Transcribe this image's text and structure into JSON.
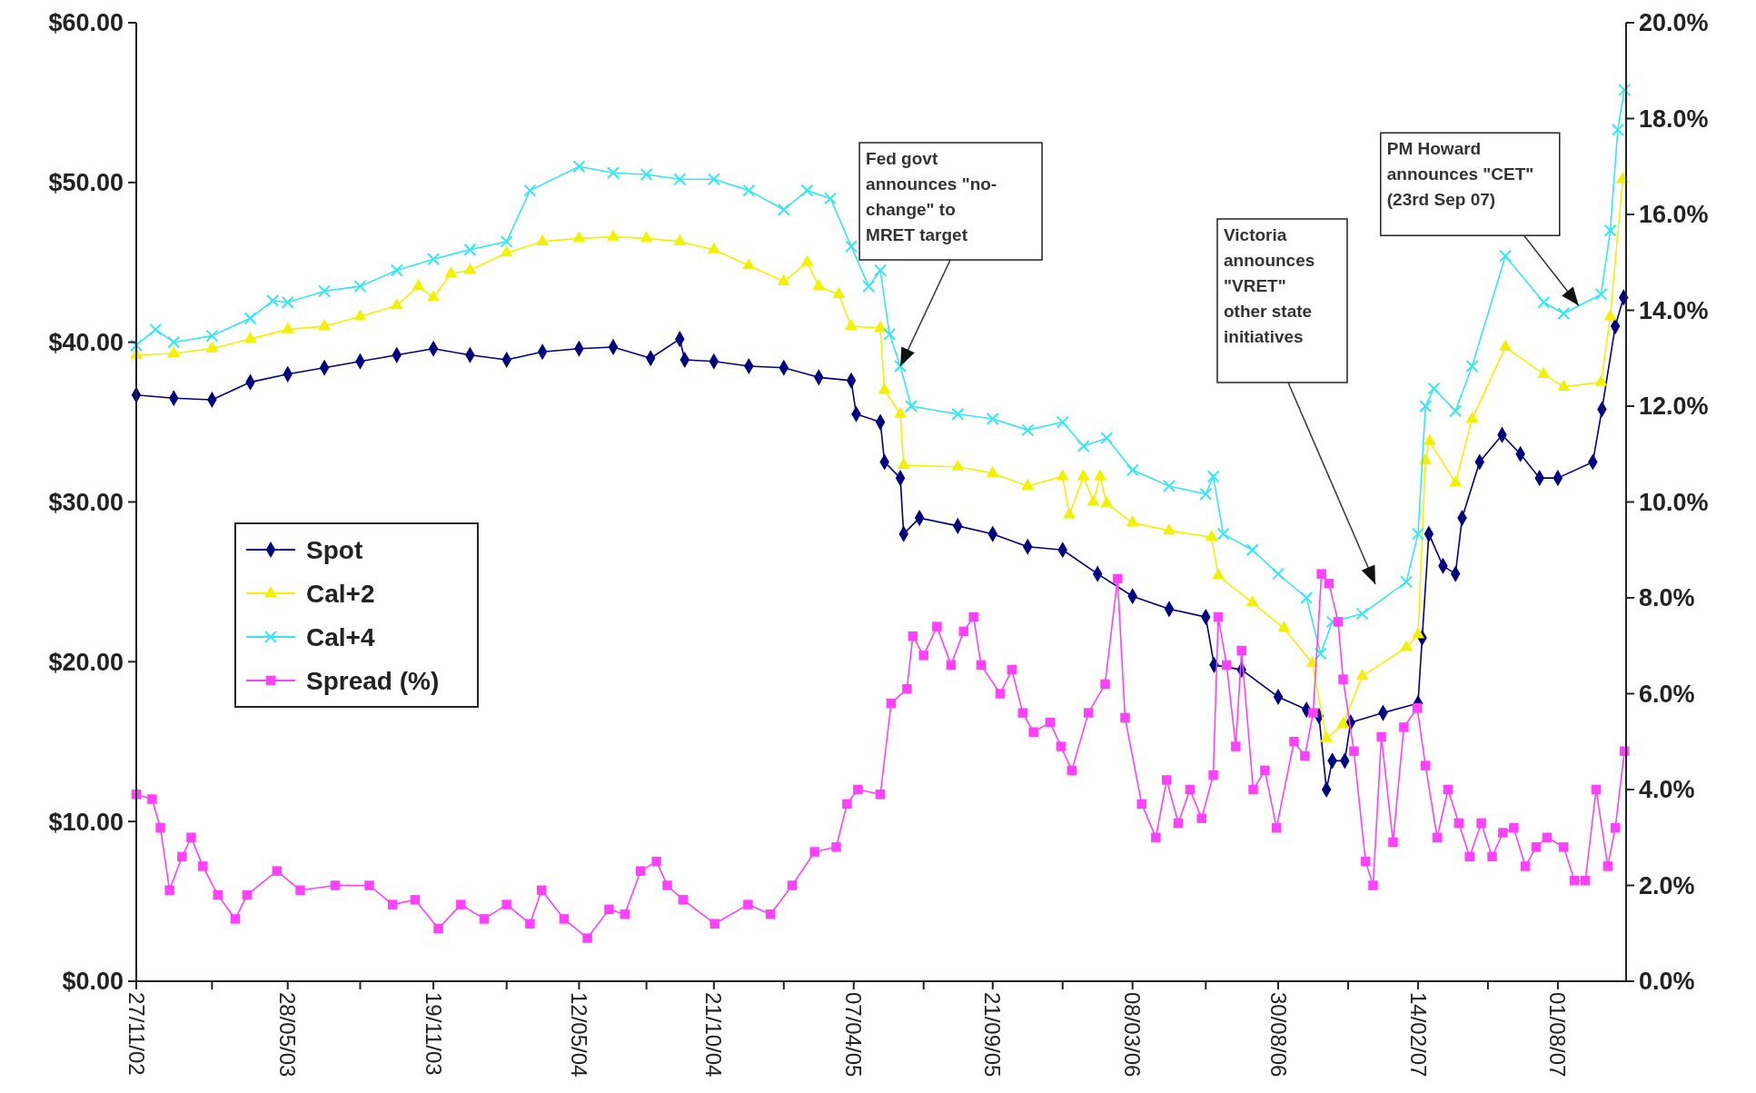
{
  "chart_data": {
    "type": "line",
    "ylim": [
      0,
      60
    ],
    "yticks": [
      {
        "value": 0,
        "label": "$0.00"
      },
      {
        "value": 10,
        "label": "$10.00"
      },
      {
        "value": 20,
        "label": "$20.00"
      },
      {
        "value": 30,
        "label": "$30.00"
      },
      {
        "value": 40,
        "label": "$40.00"
      },
      {
        "value": 50,
        "label": "$50.00"
      },
      {
        "value": 60,
        "label": "$60.00"
      }
    ],
    "y2lim": [
      0,
      20
    ],
    "y2ticks": [
      {
        "value": 0,
        "label": "0.0%"
      },
      {
        "value": 2,
        "label": "2.0%"
      },
      {
        "value": 4,
        "label": "4.0%"
      },
      {
        "value": 6,
        "label": "6.0%"
      },
      {
        "value": 8,
        "label": "8.0%"
      },
      {
        "value": 10,
        "label": "10.0%"
      },
      {
        "value": 12,
        "label": "12.0%"
      },
      {
        "value": 14,
        "label": "14.0%"
      },
      {
        "value": 16,
        "label": "16.0%"
      },
      {
        "value": 18,
        "label": "18.0%"
      },
      {
        "value": 20,
        "label": "20.0%"
      }
    ],
    "xlim": [
      "2002-11-27",
      "2007-10-22"
    ],
    "xticks": [
      {
        "value": "2002-11-27",
        "label": "27/11/02"
      },
      {
        "value": "2003-02-26",
        "label": null
      },
      {
        "value": "2003-05-28",
        "label": "28/05/03"
      },
      {
        "value": "2003-08-23",
        "label": null
      },
      {
        "value": "2003-11-19",
        "label": "19/11/03"
      },
      {
        "value": "2004-02-15",
        "label": null
      },
      {
        "value": "2004-05-12",
        "label": "12/05/04"
      },
      {
        "value": "2004-08-01",
        "label": null
      },
      {
        "value": "2004-10-21",
        "label": "21/10/04"
      },
      {
        "value": "2005-01-13",
        "label": null
      },
      {
        "value": "2005-04-07",
        "label": "07/04/05"
      },
      {
        "value": "2005-06-30",
        "label": null
      },
      {
        "value": "2005-09-21",
        "label": "21/09/05"
      },
      {
        "value": "2005-12-14",
        "label": null
      },
      {
        "value": "2006-03-08",
        "label": "08/03/06"
      },
      {
        "value": "2006-06-04",
        "label": null
      },
      {
        "value": "2006-08-30",
        "label": "30/08/06"
      },
      {
        "value": "2006-11-22",
        "label": null
      },
      {
        "value": "2007-02-14",
        "label": "14/02/07"
      },
      {
        "value": "2007-05-09",
        "label": null
      },
      {
        "value": "2007-08-01",
        "label": "01/08/07"
      }
    ],
    "grid": false,
    "legend": "left",
    "line_style": "solid",
    "series": [
      {
        "name": "Spot",
        "color": "#000080",
        "marker": "diamond",
        "x": [
          "2002-11-27",
          "2003-01-11",
          "2003-02-26",
          "2003-04-13",
          "2003-05-28",
          "2003-07-11",
          "2003-08-23",
          "2003-10-06",
          "2003-11-19",
          "2004-01-02",
          "2004-02-15",
          "2004-03-29",
          "2004-05-12",
          "2004-06-22",
          "2004-08-06",
          "2004-09-10",
          "2004-09-16",
          "2004-10-21",
          "2004-12-02",
          "2005-01-13",
          "2005-02-24",
          "2005-04-04",
          "2005-04-10",
          "2005-05-09",
          "2005-05-14",
          "2005-06-02",
          "2005-06-06",
          "2005-06-25",
          "2005-08-10",
          "2005-09-21",
          "2005-11-02",
          "2005-12-14",
          "2006-01-25",
          "2006-03-08",
          "2006-04-21",
          "2006-06-04",
          "2006-06-14",
          "2006-07-17",
          "2006-08-30",
          "2006-10-03",
          "2006-10-18",
          "2006-10-27",
          "2006-11-03",
          "2006-11-18",
          "2006-11-25",
          "2007-01-03",
          "2007-02-14",
          "2007-02-19",
          "2007-02-27",
          "2007-03-16",
          "2007-03-31",
          "2007-04-08",
          "2007-04-29",
          "2007-05-26",
          "2007-06-17",
          "2007-07-10",
          "2007-08-01",
          "2007-09-12",
          "2007-09-23",
          "2007-10-09",
          "2007-10-19"
        ],
        "values": [
          36.7,
          36.5,
          36.4,
          37.5,
          38.0,
          38.4,
          38.8,
          39.2,
          39.6,
          39.2,
          38.9,
          39.4,
          39.6,
          39.7,
          39.0,
          40.2,
          38.9,
          38.8,
          38.5,
          38.4,
          37.8,
          37.6,
          35.5,
          35.0,
          32.5,
          31.5,
          28.0,
          29.0,
          28.5,
          28.0,
          27.2,
          27.0,
          25.5,
          24.1,
          23.3,
          22.8,
          19.8,
          19.5,
          17.8,
          17.0,
          16.6,
          12.0,
          13.8,
          13.8,
          16.2,
          16.8,
          17.4,
          21.5,
          28.0,
          26.0,
          25.5,
          29.0,
          32.5,
          34.2,
          33.0,
          31.5,
          31.5,
          32.5,
          35.8,
          41.0,
          42.8
        ]
      },
      {
        "name": "Cal+2",
        "color": "#f2f200",
        "marker": "triangle",
        "x": [
          "2002-11-27",
          "2003-01-11",
          "2003-02-26",
          "2003-04-13",
          "2003-05-28",
          "2003-07-11",
          "2003-08-23",
          "2003-10-06",
          "2003-11-01",
          "2003-11-19",
          "2003-12-10",
          "2004-01-02",
          "2004-02-15",
          "2004-03-29",
          "2004-05-12",
          "2004-06-22",
          "2004-08-01",
          "2004-09-10",
          "2004-10-21",
          "2004-12-02",
          "2005-01-13",
          "2005-02-10",
          "2005-02-24",
          "2005-03-20",
          "2005-04-04",
          "2005-05-09",
          "2005-05-14",
          "2005-06-02",
          "2005-06-06",
          "2005-08-10",
          "2005-09-21",
          "2005-11-02",
          "2005-12-14",
          "2005-12-22",
          "2006-01-08",
          "2006-01-20",
          "2006-01-28",
          "2006-02-05",
          "2006-03-08",
          "2006-04-21",
          "2006-06-11",
          "2006-06-19",
          "2006-07-30",
          "2006-09-06",
          "2006-10-10",
          "2006-10-27",
          "2006-11-16",
          "2006-12-09",
          "2007-01-31",
          "2007-02-14",
          "2007-02-23",
          "2007-02-28",
          "2007-03-31",
          "2007-04-20",
          "2007-05-30",
          "2007-07-15",
          "2007-08-08",
          "2007-09-22",
          "2007-10-03",
          "2007-10-18"
        ],
        "values": [
          39.2,
          39.3,
          39.6,
          40.2,
          40.8,
          41.0,
          41.6,
          42.3,
          43.5,
          42.8,
          44.3,
          44.5,
          45.6,
          46.3,
          46.5,
          46.6,
          46.5,
          46.3,
          45.8,
          44.8,
          43.8,
          45.0,
          43.5,
          43.0,
          41.0,
          40.9,
          37.0,
          35.5,
          32.3,
          32.2,
          31.8,
          31.0,
          31.6,
          29.2,
          31.6,
          30.0,
          31.6,
          29.9,
          28.7,
          28.2,
          27.8,
          25.4,
          23.7,
          22.1,
          19.9,
          15.2,
          16.1,
          19.1,
          20.9,
          21.7,
          32.6,
          33.8,
          31.2,
          35.2,
          39.7,
          38.0,
          37.2,
          37.5,
          41.6,
          50.2
        ]
      },
      {
        "name": "Cal+4",
        "color": "#33e8f0",
        "marker": "cross",
        "x": [
          "2002-11-27",
          "2002-12-20",
          "2003-01-11",
          "2003-02-26",
          "2003-04-13",
          "2003-05-10",
          "2003-05-28",
          "2003-07-11",
          "2003-08-23",
          "2003-10-06",
          "2003-11-19",
          "2004-01-02",
          "2004-02-15",
          "2004-03-14",
          "2004-05-12",
          "2004-06-22",
          "2004-08-01",
          "2004-09-10",
          "2004-10-21",
          "2004-12-02",
          "2005-01-13",
          "2005-02-10",
          "2005-03-10",
          "2005-04-04",
          "2005-04-25",
          "2005-05-09",
          "2005-05-20",
          "2005-06-02",
          "2005-06-15",
          "2005-08-10",
          "2005-09-21",
          "2005-11-02",
          "2005-12-14",
          "2006-01-08",
          "2006-02-05",
          "2006-03-08",
          "2006-04-21",
          "2006-06-04",
          "2006-06-13",
          "2006-06-25",
          "2006-07-30",
          "2006-08-30",
          "2006-10-03",
          "2006-10-20",
          "2006-11-03",
          "2006-12-09",
          "2007-01-31",
          "2007-02-14",
          "2007-02-23",
          "2007-03-05",
          "2007-03-31",
          "2007-04-20",
          "2007-05-30",
          "2007-07-15",
          "2007-08-08",
          "2007-09-22",
          "2007-10-03",
          "2007-10-12",
          "2007-10-20"
        ],
        "values": [
          39.8,
          40.8,
          40.0,
          40.4,
          41.5,
          42.6,
          42.5,
          43.2,
          43.5,
          44.5,
          45.2,
          45.8,
          46.3,
          49.5,
          51.0,
          50.6,
          50.5,
          50.2,
          50.2,
          49.5,
          48.3,
          49.5,
          49.0,
          46.0,
          43.5,
          44.5,
          40.5,
          38.5,
          36.0,
          35.5,
          35.2,
          34.5,
          35.0,
          33.5,
          34.0,
          32.0,
          31.0,
          30.5,
          31.6,
          28.0,
          27.0,
          25.5,
          24.0,
          20.5,
          22.5,
          23.0,
          25.0,
          28.0,
          36.0,
          37.1,
          35.7,
          38.5,
          45.4,
          42.5,
          41.8,
          43.0,
          47.0,
          53.3,
          55.8
        ]
      },
      {
        "name": "Spread (%)",
        "color": "#ff40ff",
        "marker": "square",
        "axis": "y2",
        "x": [
          "2002-11-27",
          "2002-12-16",
          "2002-12-26",
          "2003-01-06",
          "2003-01-21",
          "2003-02-01",
          "2003-02-15",
          "2003-03-05",
          "2003-03-26",
          "2003-04-09",
          "2003-05-15",
          "2003-06-12",
          "2003-07-24",
          "2003-09-03",
          "2003-10-01",
          "2003-10-28",
          "2003-11-25",
          "2003-12-22",
          "2004-01-19",
          "2004-02-15",
          "2004-03-14",
          "2004-03-28",
          "2004-04-24",
          "2004-05-22",
          "2004-06-17",
          "2004-07-06",
          "2004-07-25",
          "2004-08-13",
          "2004-08-26",
          "2004-09-14",
          "2004-10-22",
          "2004-12-01",
          "2004-12-28",
          "2005-01-23",
          "2005-02-19",
          "2005-03-17",
          "2005-03-30",
          "2005-04-12",
          "2005-05-09",
          "2005-05-22",
          "2005-06-10",
          "2005-06-17",
          "2005-06-30",
          "2005-07-16",
          "2005-08-02",
          "2005-08-17",
          "2005-08-29",
          "2005-09-07",
          "2005-09-30",
          "2005-10-14",
          "2005-10-27",
          "2005-11-09",
          "2005-11-29",
          "2005-12-12",
          "2005-12-25",
          "2006-01-14",
          "2006-02-03",
          "2006-02-18",
          "2006-02-27",
          "2006-03-19",
          "2006-04-05",
          "2006-04-18",
          "2006-05-02",
          "2006-05-16",
          "2006-05-30",
          "2006-06-13",
          "2006-06-19",
          "2006-06-29",
          "2006-07-10",
          "2006-07-17",
          "2006-07-31",
          "2006-08-14",
          "2006-08-28",
          "2006-09-18",
          "2006-10-01",
          "2006-10-11",
          "2006-10-21",
          "2006-10-30",
          "2006-11-10",
          "2006-11-16",
          "2006-11-29",
          "2006-12-13",
          "2006-12-22",
          "2007-01-01",
          "2007-01-15",
          "2007-01-28",
          "2007-02-13",
          "2007-02-23",
          "2007-03-09",
          "2007-03-22",
          "2007-04-04",
          "2007-04-17",
          "2007-05-01",
          "2007-05-14",
          "2007-05-27",
          "2007-06-09",
          "2007-06-23",
          "2007-07-06",
          "2007-07-19",
          "2007-08-08",
          "2007-08-21",
          "2007-09-03",
          "2007-09-16",
          "2007-09-30",
          "2007-10-09",
          "2007-10-20"
        ],
        "values": [
          3.9,
          3.8,
          3.2,
          1.9,
          2.6,
          3.0,
          2.4,
          1.8,
          1.3,
          1.8,
          2.3,
          1.9,
          2.0,
          2.0,
          1.6,
          1.7,
          1.1,
          1.6,
          1.3,
          1.6,
          1.2,
          1.9,
          1.3,
          0.9,
          1.5,
          1.4,
          2.3,
          2.5,
          2.0,
          1.7,
          1.2,
          1.6,
          1.4,
          2.0,
          2.7,
          2.8,
          3.7,
          4.0,
          3.9,
          5.8,
          6.1,
          7.2,
          6.8,
          7.4,
          6.6,
          7.3,
          7.6,
          6.6,
          6.0,
          6.5,
          5.6,
          5.2,
          5.4,
          4.9,
          4.4,
          5.6,
          6.2,
          8.4,
          5.5,
          3.7,
          3.0,
          4.2,
          3.3,
          4.0,
          3.4,
          4.3,
          7.6,
          6.6,
          4.9,
          6.9,
          4.0,
          4.4,
          3.2,
          5.0,
          4.7,
          5.6,
          8.5,
          8.3,
          7.5,
          6.3,
          4.8,
          2.5,
          2.0,
          5.1,
          2.9,
          5.3,
          5.7,
          4.5,
          3.0,
          4.0,
          3.3,
          2.6,
          3.3,
          2.6,
          3.1,
          3.2,
          2.4,
          2.8,
          3.0,
          2.8,
          2.1,
          2.1,
          4.0,
          2.4,
          3.2,
          4.8
        ]
      }
    ],
    "annotations": [
      {
        "text": "Fed govt\nannounces \"no-\nchange\" to\nMRET target",
        "x": "2005-06-02",
        "y": 38.5
      },
      "Victoria\nannounces\n\"VRET\"\nother state\ninitiatives",
      {
        "text": "PM Howard\nannounces \"CET\"\n(23rd Sep 07)",
        "x": "2007-08-26",
        "y": 42.3
      }
    ]
  }
}
